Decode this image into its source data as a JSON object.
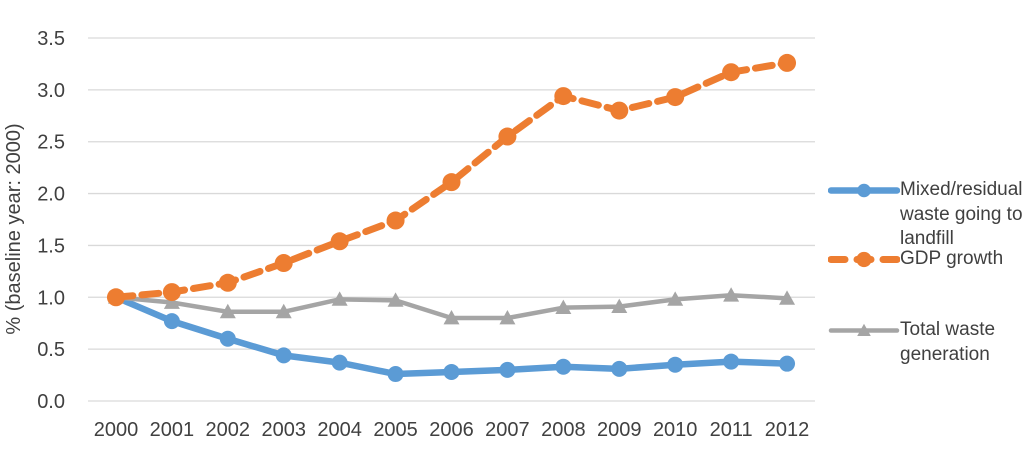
{
  "figure": {
    "background": "#FFFFFF"
  },
  "chart_data": {
    "type": "line",
    "title": "",
    "xlabel": "",
    "ylabel": "% (baseline year: 2000)",
    "categories": [
      "2000",
      "2001",
      "2002",
      "2003",
      "2004",
      "2005",
      "2006",
      "2007",
      "2008",
      "2009",
      "2010",
      "2011",
      "2012"
    ],
    "ylim": [
      0.0,
      3.5
    ],
    "ytick_step": 0.5,
    "yticks": [
      "0.0",
      "0.5",
      "1.0",
      "1.5",
      "2.0",
      "2.5",
      "3.0",
      "3.5"
    ],
    "grid": "horizontal",
    "legend_position": "right",
    "series": [
      {
        "name": "Mixed/residual waste going to landfill",
        "color": "#5B9BD5",
        "marker": "circle",
        "line_style": "solid",
        "values": [
          1.0,
          0.77,
          0.6,
          0.44,
          0.37,
          0.26,
          0.28,
          0.3,
          0.33,
          0.31,
          0.35,
          0.38,
          0.36
        ]
      },
      {
        "name": "GDP growth",
        "color": "#ED7D31",
        "marker": "circle",
        "line_style": "dashed",
        "values": [
          1.0,
          1.05,
          1.14,
          1.33,
          1.54,
          1.74,
          2.11,
          2.55,
          2.94,
          2.8,
          2.93,
          3.17,
          3.26
        ]
      },
      {
        "name": "Total waste generation",
        "color": "#A5A5A5",
        "marker": "triangle",
        "line_style": "solid",
        "values": [
          1.0,
          0.95,
          0.86,
          0.86,
          0.98,
          0.97,
          0.8,
          0.8,
          0.9,
          0.91,
          0.98,
          1.02,
          0.99
        ]
      }
    ],
    "colors": {
      "gridline": "#D9D9D9",
      "axis_text": "#404040",
      "background": "#FFFFFF"
    }
  }
}
